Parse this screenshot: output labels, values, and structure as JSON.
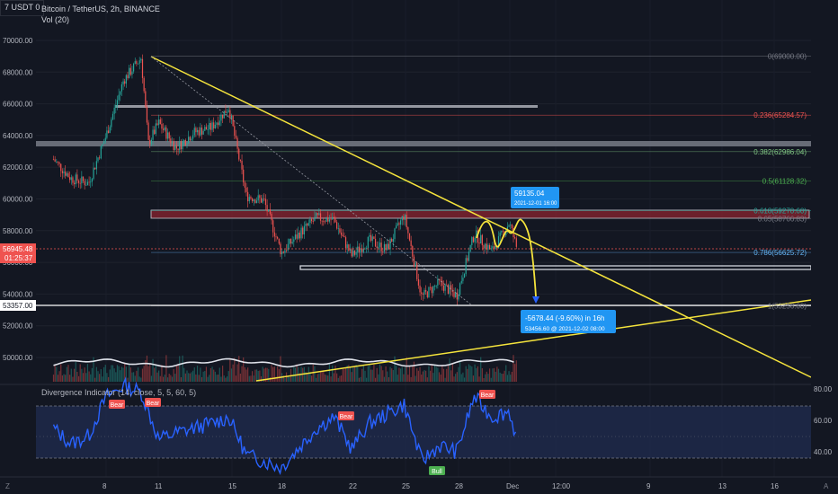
{
  "header": {
    "badge": "7 USDT 0",
    "title": "Bitcoin / TetherUS, 2h, BINANCE",
    "volume": "Vol (20)",
    "indicator": "Divergence Indicator (14, close, 5, 5, 60, 5)"
  },
  "colors": {
    "background": "#131722",
    "up": "#26a69a",
    "down": "#ef5350",
    "trendline": "#f5e43c",
    "rsi": "#2962ff",
    "rsi_band": "#1f2b4d",
    "resistance_zone": "#8b2430",
    "support_zone": "#787b86"
  },
  "price_axis": {
    "ticks": [
      "70000.00",
      "68000.00",
      "66000.00",
      "64000.00",
      "62000.00",
      "60000.00",
      "58000.00",
      "56000.00",
      "54000.00",
      "52000.00",
      "50000.00"
    ],
    "current_price": "56945.48",
    "countdown": "01:25:37",
    "target_price": "53357.00"
  },
  "rsi_axis": {
    "ticks": [
      "80.00",
      "60.00",
      "40.00"
    ]
  },
  "time_axis": {
    "ticks": [
      "8",
      "11",
      "15",
      "18",
      "22",
      "25",
      "28",
      "Dec",
      "12:00",
      "9",
      "13",
      "16"
    ]
  },
  "fib_levels": [
    {
      "label": "0(69000.00)",
      "price": 69000
    },
    {
      "label": "0.236(65284.57)",
      "price": 65284.57
    },
    {
      "label": "0.382(62986.04)",
      "price": 62986.04
    },
    {
      "label": "0.5(61128.32)",
      "price": 61128.32
    },
    {
      "label": "0.618(59270.60)",
      "price": 59270.6
    },
    {
      "label": "0.65(58766.83)",
      "price": 58766.83
    },
    {
      "label": "0.786(56625.72)",
      "price": 56625.72
    },
    {
      "label": "1(53256.60)",
      "price": 53256.6
    }
  ],
  "annotations": {
    "high_price": "59135.04",
    "high_time": "2021-12-01 16:00",
    "drop_measure": "-5678.44 (-9.60%) in 16h",
    "drop_target": "53456.60 @ 2021-12-02  08:00"
  },
  "divergence_labels": [
    "Bear",
    "Bear",
    "Bear",
    "Bear",
    "Bull"
  ],
  "chart_data": {
    "type": "candlestick",
    "title": "Bitcoin / TetherUS, 2h, BINANCE",
    "ylim": [
      48500,
      71000
    ],
    "rsi_ylim": [
      30,
      85
    ],
    "price_path": [
      {
        "date": "2021-11-05",
        "price": 62500
      },
      {
        "date": "2021-11-06",
        "price": 61300
      },
      {
        "date": "2021-11-07",
        "price": 61000
      },
      {
        "date": "2021-11-08",
        "price": 64000
      },
      {
        "date": "2021-11-09",
        "price": 67500
      },
      {
        "date": "2021-11-10",
        "price": 68900
      },
      {
        "date": "2021-11-10",
        "price": 63500
      },
      {
        "date": "2021-11-11",
        "price": 64800
      },
      {
        "date": "2021-11-12",
        "price": 63200
      },
      {
        "date": "2021-11-13",
        "price": 64200
      },
      {
        "date": "2021-11-14",
        "price": 64500
      },
      {
        "date": "2021-11-15",
        "price": 65800
      },
      {
        "date": "2021-11-16",
        "price": 60200
      },
      {
        "date": "2021-11-17",
        "price": 59900
      },
      {
        "date": "2021-11-18",
        "price": 56600
      },
      {
        "date": "2021-11-19",
        "price": 57800
      },
      {
        "date": "2021-11-20",
        "price": 58800
      },
      {
        "date": "2021-11-21",
        "price": 58700
      },
      {
        "date": "2021-11-22",
        "price": 56400
      },
      {
        "date": "2021-11-23",
        "price": 57400
      },
      {
        "date": "2021-11-24",
        "price": 56800
      },
      {
        "date": "2021-11-25",
        "price": 59000
      },
      {
        "date": "2021-11-26",
        "price": 53800
      },
      {
        "date": "2021-11-27",
        "price": 54700
      },
      {
        "date": "2021-11-28",
        "price": 53900
      },
      {
        "date": "2021-11-29",
        "price": 57800
      },
      {
        "date": "2021-11-30",
        "price": 56700
      },
      {
        "date": "2021-12-01",
        "price": 58500
      },
      {
        "date": "2021-12-01",
        "price": 56945
      }
    ],
    "rsi_path": [
      {
        "date": "2021-11-05",
        "value": 55
      },
      {
        "date": "2021-11-06",
        "value": 45
      },
      {
        "date": "2021-11-07",
        "value": 50
      },
      {
        "date": "2021-11-08",
        "value": 75
      },
      {
        "date": "2021-11-09",
        "value": 82
      },
      {
        "date": "2021-11-10",
        "value": 78
      },
      {
        "date": "2021-11-11",
        "value": 48
      },
      {
        "date": "2021-11-12",
        "value": 52
      },
      {
        "date": "2021-11-14",
        "value": 58
      },
      {
        "date": "2021-11-15",
        "value": 62
      },
      {
        "date": "2021-11-16",
        "value": 38
      },
      {
        "date": "2021-11-17",
        "value": 34
      },
      {
        "date": "2021-11-18",
        "value": 30
      },
      {
        "date": "2021-11-20",
        "value": 55
      },
      {
        "date": "2021-11-21",
        "value": 62
      },
      {
        "date": "2021-11-22",
        "value": 42
      },
      {
        "date": "2021-11-23",
        "value": 58
      },
      {
        "date": "2021-11-25",
        "value": 70
      },
      {
        "date": "2021-11-26",
        "value": 34
      },
      {
        "date": "2021-11-27",
        "value": 44
      },
      {
        "date": "2021-11-28",
        "value": 40
      },
      {
        "date": "2021-11-29",
        "value": 75
      },
      {
        "date": "2021-11-30",
        "value": 62
      },
      {
        "date": "2021-12-01",
        "value": 66
      },
      {
        "date": "2021-12-01",
        "value": 48
      }
    ]
  }
}
